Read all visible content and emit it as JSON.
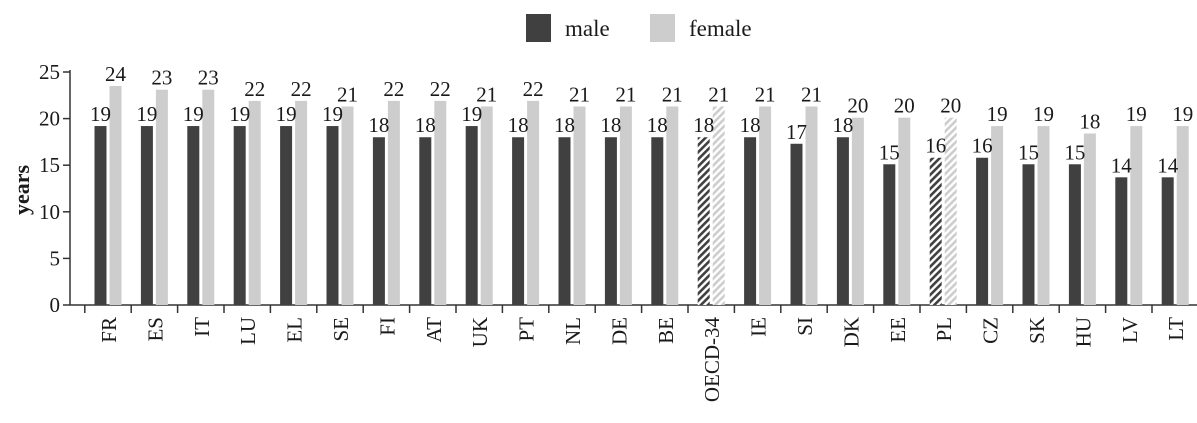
{
  "chart_data": {
    "type": "bar",
    "ylabel": "years",
    "ylim": [
      0,
      25
    ],
    "yticks": [
      0,
      5,
      10,
      15,
      20,
      25
    ],
    "grid": false,
    "legend_position": "top-center",
    "categories": [
      "FR",
      "ES",
      "IT",
      "LU",
      "EL",
      "SE",
      "FI",
      "AT",
      "UK",
      "PT",
      "NL",
      "DE",
      "BE",
      "OECD-34",
      "IE",
      "SI",
      "DK",
      "EE",
      "PL",
      "CZ",
      "SK",
      "HU",
      "LV",
      "LT"
    ],
    "highlighted_categories": [
      "OECD-34",
      "PL"
    ],
    "series": [
      {
        "name": "male",
        "color": "#404040",
        "values": [
          19.2,
          19.2,
          19.2,
          19.2,
          19.2,
          19.2,
          18.0,
          18.0,
          19.2,
          18.0,
          18.0,
          18.0,
          18.0,
          18.0,
          18.0,
          17.3,
          18.0,
          15.1,
          15.8,
          15.8,
          15.1,
          15.1,
          13.7,
          13.7
        ],
        "labels": [
          "19",
          "19",
          "19",
          "19",
          "19",
          "19",
          "18",
          "18",
          "19",
          "18",
          "18",
          "18",
          "18",
          "18",
          "18",
          "17",
          "18",
          "15",
          "16",
          "16",
          "15",
          "15",
          "14",
          "14"
        ]
      },
      {
        "name": "female",
        "color": "#cdcdcd",
        "values": [
          23.5,
          23.1,
          23.1,
          21.9,
          21.9,
          21.3,
          21.9,
          21.9,
          21.3,
          21.9,
          21.3,
          21.3,
          21.3,
          21.3,
          21.3,
          21.3,
          20.1,
          20.1,
          20.1,
          19.2,
          19.2,
          18.4,
          19.2,
          19.2
        ],
        "labels": [
          "24",
          "23",
          "23",
          "22",
          "22",
          "21",
          "22",
          "22",
          "21",
          "22",
          "21",
          "21",
          "21",
          "21",
          "21",
          "21",
          "20",
          "20",
          "20",
          "19",
          "19",
          "18",
          "19",
          "19"
        ]
      }
    ]
  }
}
